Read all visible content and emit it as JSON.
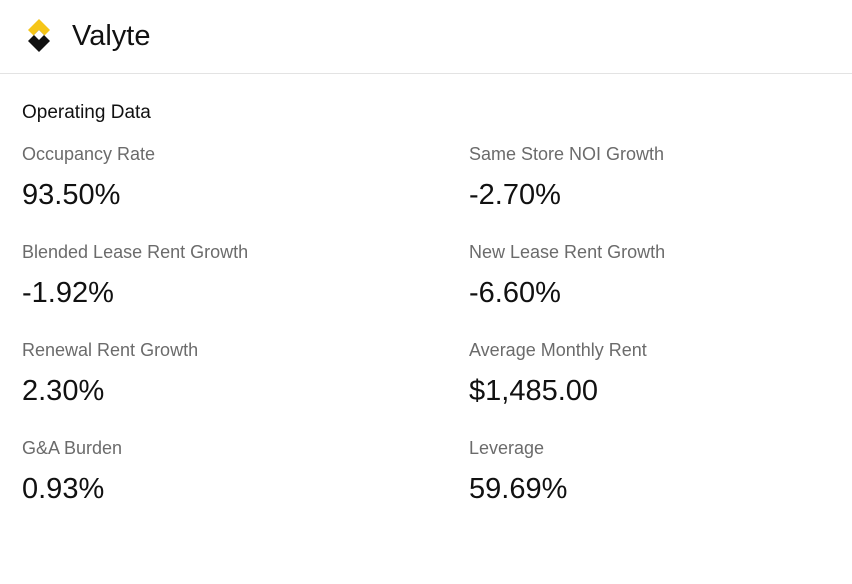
{
  "header": {
    "brand": "Valyte"
  },
  "section": {
    "title": "Operating Data",
    "metrics": [
      {
        "label": "Occupancy Rate",
        "value": "93.50%"
      },
      {
        "label": "Same Store NOI Growth",
        "value": "-2.70%"
      },
      {
        "label": "Blended Lease Rent Growth",
        "value": "-1.92%"
      },
      {
        "label": "New Lease Rent Growth",
        "value": "-6.60%"
      },
      {
        "label": "Renewal Rent Growth",
        "value": "2.30%"
      },
      {
        "label": "Average Monthly Rent",
        "value": "$1,485.00"
      },
      {
        "label": "G&A Burden",
        "value": "0.93%"
      },
      {
        "label": "Leverage",
        "value": "59.69%"
      }
    ]
  }
}
